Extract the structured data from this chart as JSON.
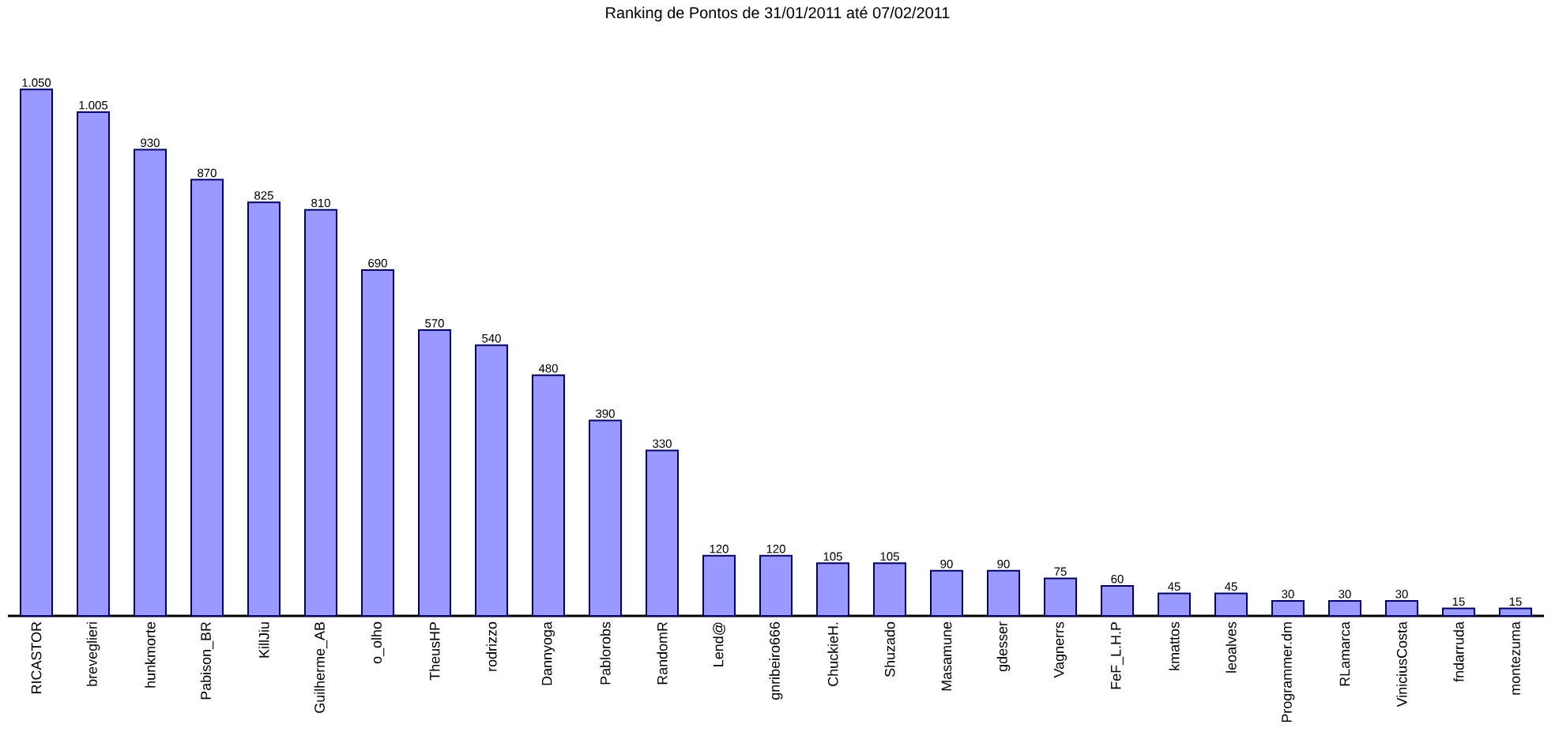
{
  "chart_data": {
    "type": "bar",
    "title": "Ranking de Pontos de 31/01/2011 até 07/02/2011",
    "categories": [
      "RICASTOR",
      "breveglieri",
      "hunkmorte",
      "Pabison_BR",
      "KillJiu",
      "Guilherme_AB",
      "o_olho",
      "TheusHP",
      "rodrizzo",
      "Dannyoga",
      "Pablorobs",
      "RandomR",
      "Lend@",
      "gnribeiro666",
      "ChuckieH.",
      "Shuzado",
      "Masamune",
      "gdesser",
      "Vagnerrs",
      "FeF_L.H.P",
      "kmattos",
      "leoalves",
      "Programmer.dm",
      "RLamarca",
      "ViniciusCosta",
      "fndarruda",
      "montezuma"
    ],
    "values": [
      1050,
      1005,
      930,
      870,
      825,
      810,
      690,
      570,
      540,
      480,
      390,
      330,
      120,
      120,
      105,
      105,
      90,
      90,
      75,
      60,
      45,
      45,
      30,
      30,
      30,
      15,
      15
    ],
    "value_labels": [
      "1.050",
      "1.005",
      "930",
      "870",
      "825",
      "810",
      "690",
      "570",
      "540",
      "480",
      "390",
      "330",
      "120",
      "120",
      "105",
      "105",
      "90",
      "90",
      "75",
      "60",
      "45",
      "45",
      "30",
      "30",
      "30",
      "15",
      "15"
    ],
    "color": "#9999ff"
  }
}
